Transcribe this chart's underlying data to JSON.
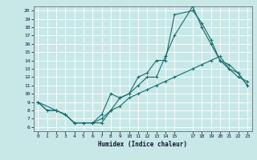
{
  "xlabel": "Humidex (Indice chaleur)",
  "background_color": "#c8e8e8",
  "grid_color": "#ffffff",
  "line_color": "#1a6b6b",
  "xlim": [
    -0.5,
    23.5
  ],
  "ylim": [
    5.5,
    20.5
  ],
  "xticks": [
    0,
    1,
    2,
    3,
    4,
    5,
    6,
    7,
    8,
    9,
    10,
    11,
    12,
    13,
    14,
    15,
    17,
    18,
    19,
    20,
    21,
    22,
    23
  ],
  "yticks": [
    6,
    7,
    8,
    9,
    10,
    11,
    12,
    13,
    14,
    15,
    16,
    17,
    18,
    19,
    20
  ],
  "line1_x": [
    0,
    1,
    2,
    3,
    4,
    5,
    6,
    7,
    8,
    9,
    10,
    11,
    12,
    13,
    14,
    15,
    17,
    18,
    19,
    20,
    21,
    22,
    23
  ],
  "line1_y": [
    9,
    8,
    8,
    7.5,
    6.5,
    6.5,
    6.5,
    7.5,
    10,
    9.5,
    10,
    12,
    12.5,
    14,
    14,
    19.5,
    20,
    18.5,
    16.5,
    14,
    13,
    12.5,
    11
  ],
  "line2_x": [
    0,
    1,
    2,
    3,
    4,
    5,
    6,
    7,
    8,
    9,
    10,
    11,
    12,
    13,
    14,
    15,
    17,
    18,
    19,
    20,
    21,
    22,
    23
  ],
  "line2_y": [
    9,
    8,
    8,
    7.5,
    6.5,
    6.5,
    6.5,
    7,
    8,
    8.5,
    9.5,
    10,
    10.5,
    11,
    11.5,
    12,
    13,
    13.5,
    14,
    14.5,
    13,
    12,
    11.5
  ],
  "line3_x": [
    0,
    2,
    3,
    4,
    5,
    6,
    7,
    8,
    9,
    10,
    11,
    12,
    13,
    14,
    15,
    17,
    18,
    19,
    20,
    21,
    22,
    23
  ],
  "line3_y": [
    9,
    8,
    7.5,
    6.5,
    6.5,
    6.5,
    6.5,
    8,
    9.5,
    10,
    11,
    12,
    12,
    14.5,
    17,
    20.5,
    18,
    16,
    14,
    13.5,
    12.5,
    11
  ]
}
